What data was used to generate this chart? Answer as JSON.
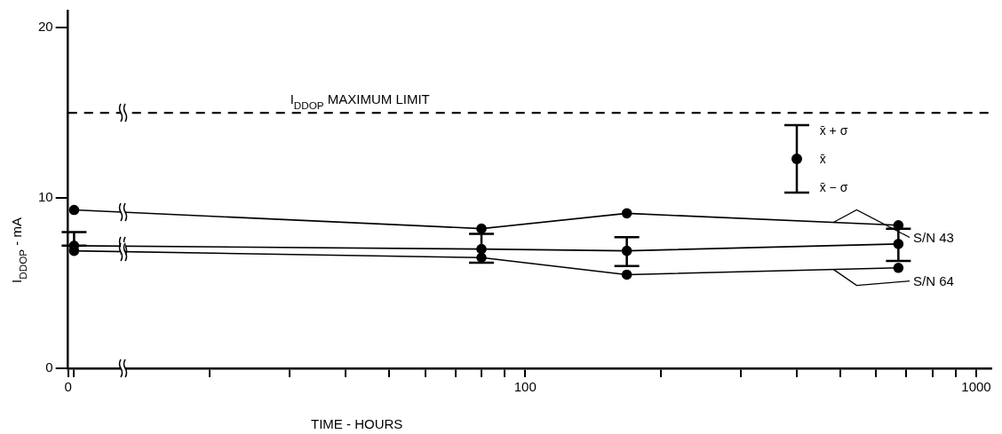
{
  "chart_data": {
    "type": "line",
    "xlabel": "TIME - HOURS",
    "ylabel": "I$_{DDOP}$ - mA",
    "x": [
      10,
      80,
      168,
      672
    ],
    "series": [
      {
        "name": "S/N 43",
        "color": "#000000",
        "values": [
          9.3,
          8.2,
          9.1,
          8.4
        ]
      },
      {
        "color": "#000000",
        "values": [
          7.2,
          7.0,
          6.9,
          7.3
        ],
        "errors": [
          [
            7.2,
            8.0
          ],
          [
            6.2,
            7.9
          ],
          [
            6.0,
            7.7
          ],
          [
            6.3,
            8.2
          ]
        ]
      },
      {
        "name": "S/N 64",
        "color": "#000000",
        "values": [
          6.9,
          6.5,
          5.5,
          5.9
        ]
      }
    ],
    "log": "x",
    "xlim": [
      0,
      1080
    ],
    "xticks": [
      0,
      {
        "value": 10,
        "label": null
      },
      {
        "value": 20,
        "label": null
      },
      {
        "value": 30,
        "label": null
      },
      {
        "value": 40,
        "label": null
      },
      {
        "value": 50,
        "label": null
      },
      {
        "value": 60,
        "label": null
      },
      {
        "value": 70,
        "label": null
      },
      {
        "value": 80,
        "label": null
      },
      {
        "value": 90,
        "label": null
      },
      100,
      {
        "value": 200,
        "label": null
      },
      {
        "value": 300,
        "label": null
      },
      {
        "value": 400,
        "label": null
      },
      {
        "value": 500,
        "label": null
      },
      {
        "value": 600,
        "label": null
      },
      {
        "value": 700,
        "label": null
      },
      {
        "value": 800,
        "label": null
      },
      {
        "value": 900,
        "label": null
      },
      1000
    ],
    "ylim": [
      0,
      21
    ],
    "yticks": [
      0,
      10,
      20
    ],
    "ref_lines": [
      {
        "axis": "y",
        "value": 15,
        "label": "I$_{DDOP}$ MAXIMUM LIMIT",
        "line_style": "dashed",
        "color": "#000000"
      }
    ],
    "annotations": [
      "x̄ + σ",
      "x̄",
      "x̄ − σ"
    ],
    "marker": "circle",
    "line_style": "solid",
    "grid": false,
    "legend": false
  }
}
